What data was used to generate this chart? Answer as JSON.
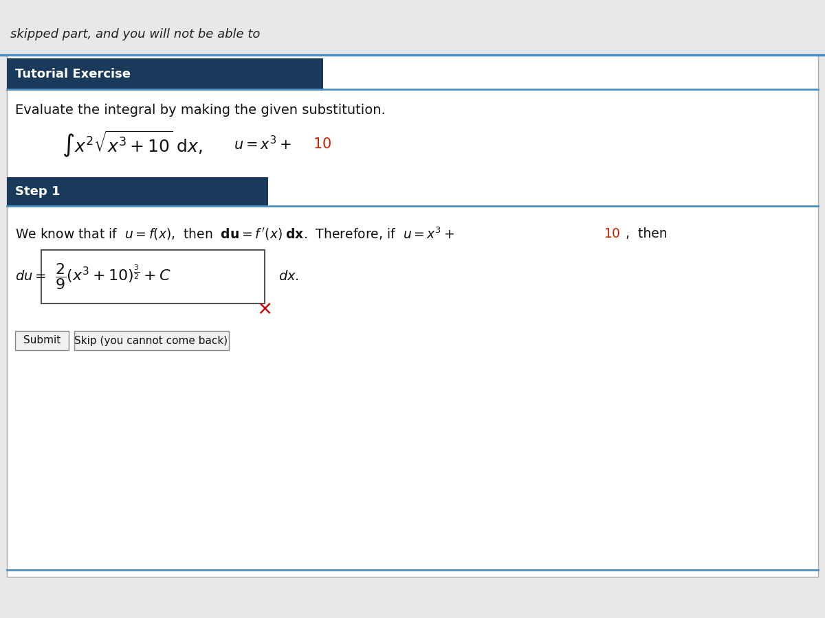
{
  "bg_color": "#e8e8e8",
  "white_panel_color": "#ffffff",
  "header_bg_color": "#1a3a5c",
  "header_text_color": "#ffffff",
  "header1_text": "Tutorial Exercise",
  "header2_text": "Step 1",
  "top_italic_text": "skipped part, and you will not be able to",
  "problem_text": "Evaluate the integral by making the given substitution.",
  "submit_btn": "Submit",
  "skip_btn": "Skip (you cannot come back)",
  "red_x_color": "#cc0000",
  "red_color": "#cc2200",
  "dark_blue": "#1a3a5c",
  "light_blue_line": "#4a90c4",
  "border_color": "#aaaaaa",
  "btn_bg": "#f0f0f0",
  "btn_border": "#888888"
}
